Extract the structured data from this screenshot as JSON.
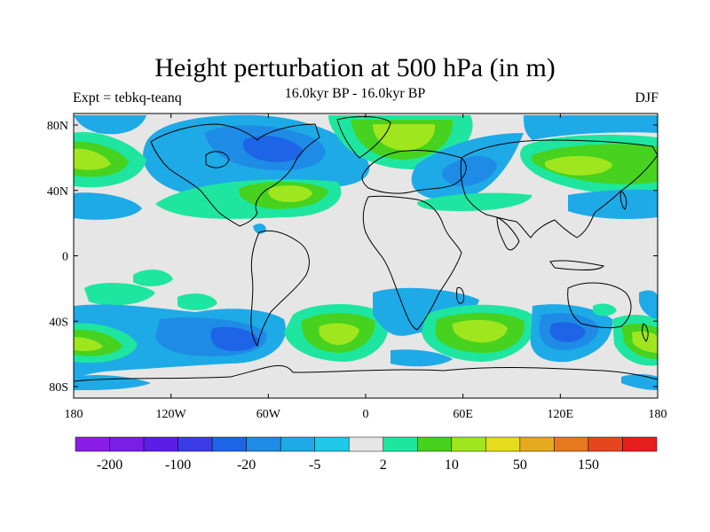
{
  "map": {
    "title": "Height perturbation at 500 hPa (in m)",
    "subtitle": "16.0kyr BP - 16.0kyr BP",
    "left_label": "Expt = tebkq-teanq",
    "right_label": "DJF",
    "lat_ticks": [
      "80N",
      "40N",
      "0",
      "40S",
      "80S"
    ],
    "lon_ticks": [
      "180",
      "120W",
      "60W",
      "0",
      "60E",
      "120E",
      "180"
    ]
  },
  "colorbar": {
    "colors": [
      "#8a1ee6",
      "#7a1ee6",
      "#5a1ee6",
      "#3c3ce6",
      "#1e64e6",
      "#1e8ce6",
      "#1eaae6",
      "#1ec8e6",
      "#e6e6e6",
      "#1ee6a0",
      "#46d21e",
      "#a0e61e",
      "#e6dc1e",
      "#e6aa1e",
      "#e6781e",
      "#e6461e",
      "#e61e1e"
    ],
    "labels": [
      {
        "text": "-200",
        "after": 0
      },
      {
        "text": "-100",
        "after": 2
      },
      {
        "text": "-20",
        "after": 4
      },
      {
        "text": "-5",
        "after": 6
      },
      {
        "text": "2",
        "after": 8
      },
      {
        "text": "10",
        "after": 10
      },
      {
        "text": "50",
        "after": 12
      },
      {
        "text": "150",
        "after": 14
      }
    ]
  }
}
